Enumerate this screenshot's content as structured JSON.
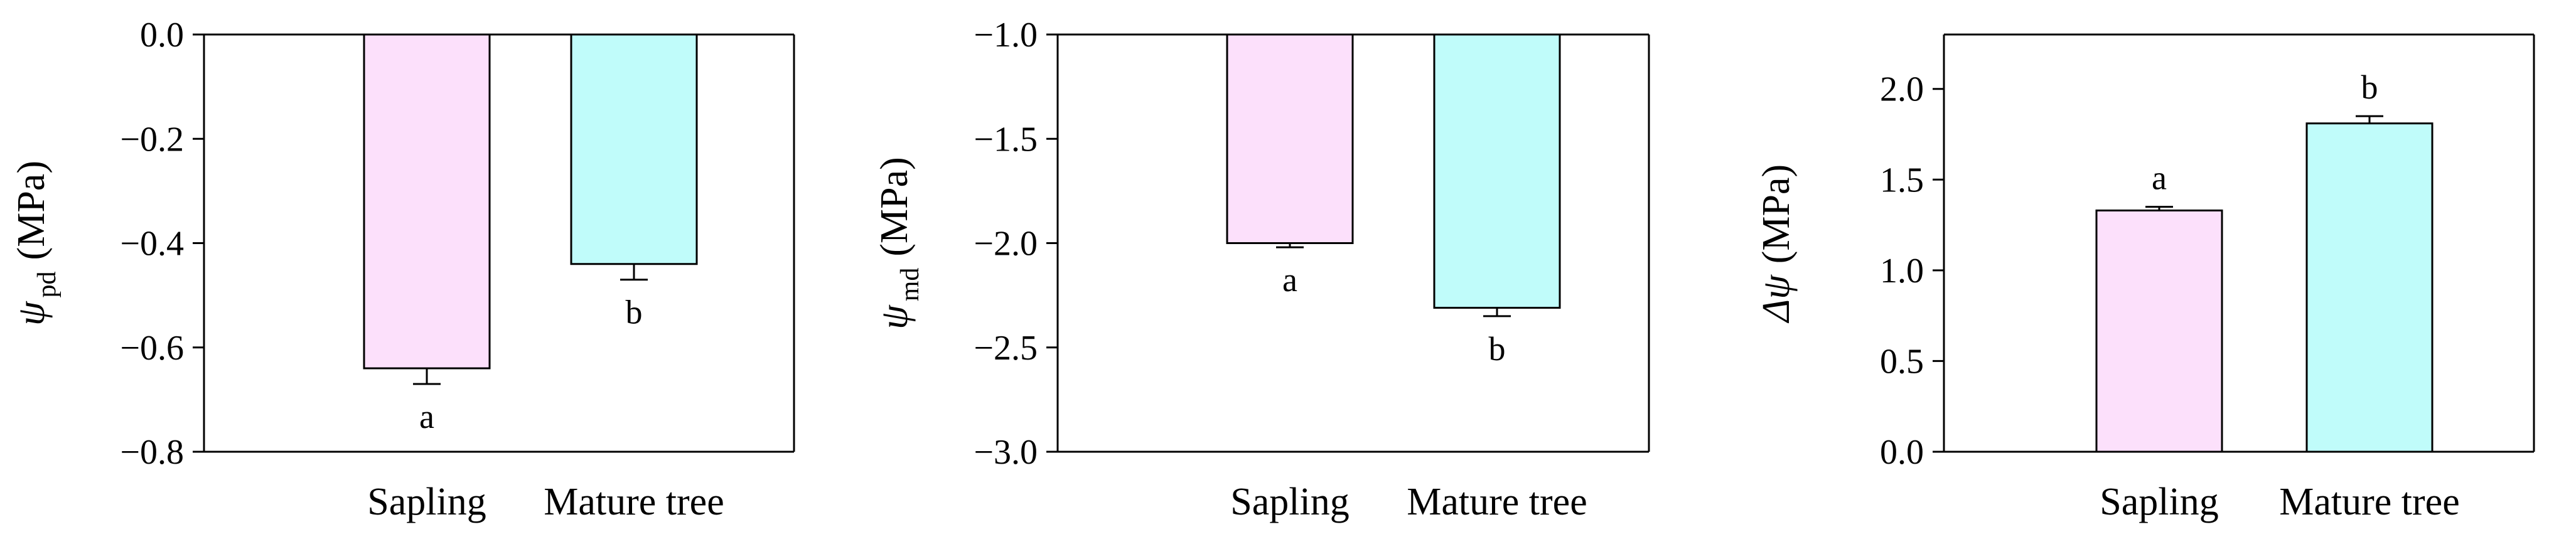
{
  "chart_data": [
    {
      "type": "bar",
      "categories": [
        "Sapling",
        "Mature tree"
      ],
      "ylabel": {
        "symbol": "ψ",
        "subscript": "pd",
        "unit": "(MPa)"
      },
      "ylim": [
        -0.8,
        0.0
      ],
      "yticks": [
        0.0,
        -0.2,
        -0.4,
        -0.6,
        -0.8
      ],
      "ytick_labels": [
        "0.0",
        "−0.2",
        "−0.4",
        "−0.6",
        "−0.8"
      ],
      "baseline": 0.0,
      "values": [
        -0.64,
        -0.44
      ],
      "errors": [
        0.03,
        0.03
      ],
      "letters": [
        "a",
        "b"
      ],
      "colors": [
        "#fce0fb",
        "#c0fcfa"
      ]
    },
    {
      "type": "bar",
      "categories": [
        "Sapling",
        "Mature tree"
      ],
      "ylabel": {
        "symbol": "ψ",
        "subscript": "md",
        "unit": "(MPa)"
      },
      "ylim": [
        -3.0,
        -1.0
      ],
      "yticks": [
        -1.0,
        -1.5,
        -2.0,
        -2.5,
        -3.0
      ],
      "ytick_labels": [
        "−1.0",
        "−1.5",
        "−2.0",
        "−2.5",
        "−3.0"
      ],
      "baseline": -1.0,
      "values": [
        -2.0,
        -2.31
      ],
      "errors": [
        0.02,
        0.04
      ],
      "letters": [
        "a",
        "b"
      ],
      "colors": [
        "#fce0fb",
        "#c0fcfa"
      ]
    },
    {
      "type": "bar",
      "categories": [
        "Sapling",
        "Mature tree"
      ],
      "ylabel": {
        "symbol": "Δψ",
        "subscript": "",
        "unit": "(MPa)"
      },
      "ylim": [
        0.0,
        2.3
      ],
      "yticks": [
        0.0,
        0.5,
        1.0,
        1.5,
        2.0
      ],
      "ytick_labels": [
        "0.0",
        "0.5",
        "1.0",
        "1.5",
        "2.0"
      ],
      "baseline": 0.0,
      "values": [
        1.33,
        1.81
      ],
      "errors": [
        0.02,
        0.04
      ],
      "letters": [
        "a",
        "b"
      ],
      "colors": [
        "#fce0fb",
        "#c0fcfa"
      ]
    }
  ]
}
